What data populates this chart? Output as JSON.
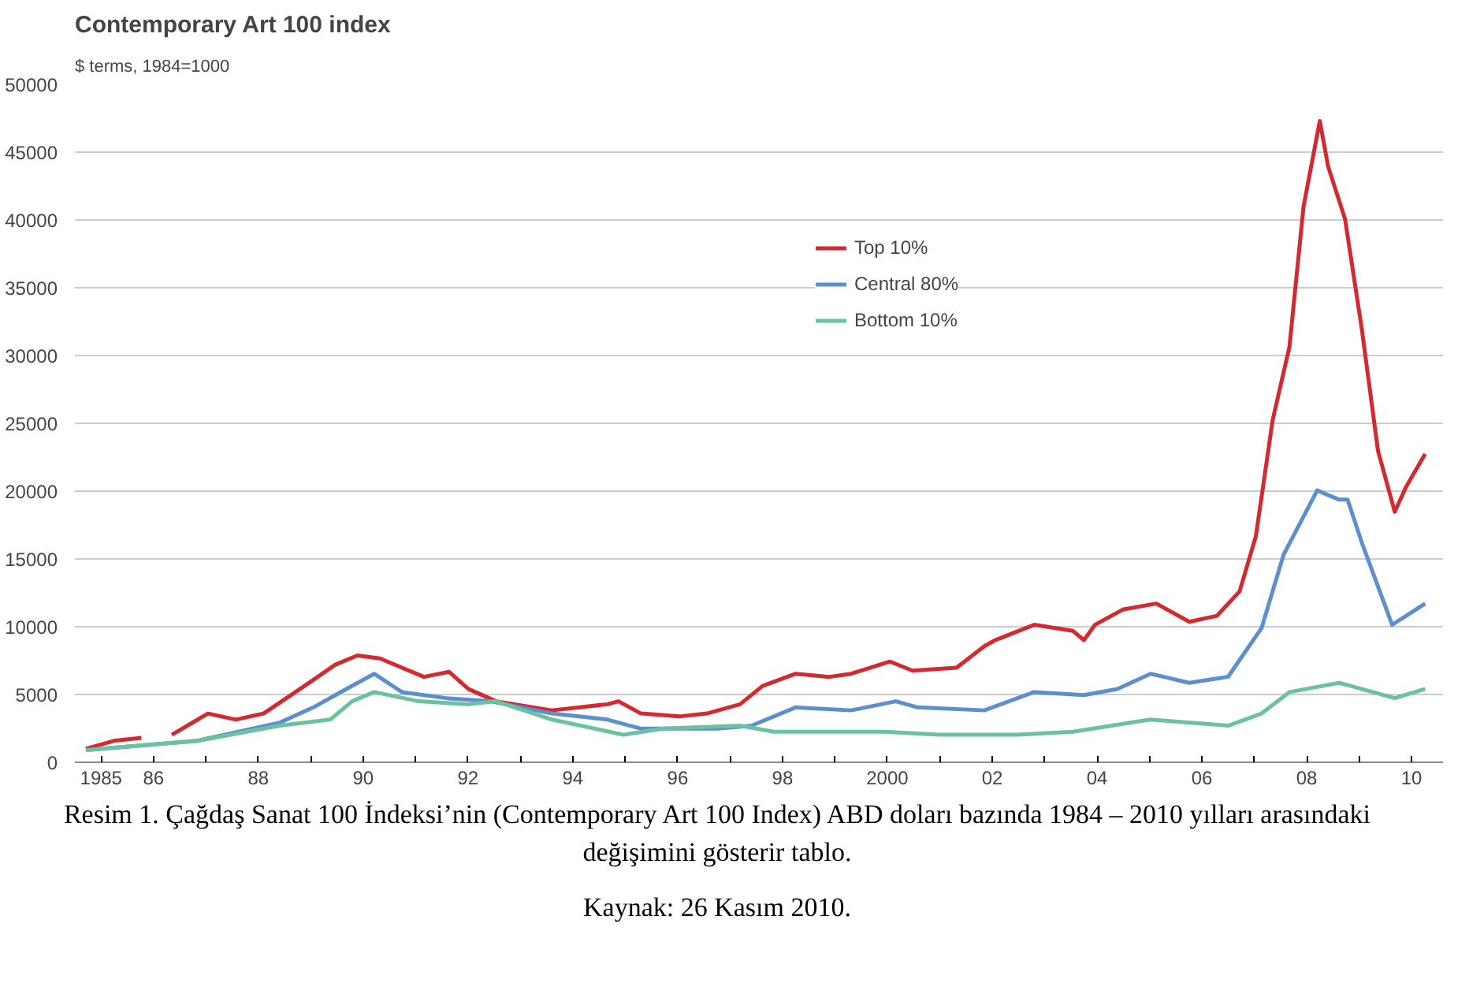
{
  "chart_data": {
    "type": "line",
    "title": "Contemporary Art 100 index",
    "subtitle": "$ terms, 1984=1000",
    "annotations": [
      "Resim 1. Çağdaş Sanat 100 İndeksi’nin (Contemporary Art 100 Index) ABD doları bazında 1984 – 2010 yılları arasındaki değişimini gösterir tablo.",
      "Kaynak: 26 Kasım 2010."
    ],
    "xlim": [
      1984.5,
      2010.6
    ],
    "ylim": [
      0,
      50000
    ],
    "xticks": [
      {
        "value": 1985,
        "label": "1985"
      },
      {
        "value": 1986,
        "label": "86"
      },
      {
        "value": 1987,
        "label": null
      },
      {
        "value": 1988,
        "label": "88"
      },
      {
        "value": 1989,
        "label": null
      },
      {
        "value": 1990,
        "label": "90"
      },
      {
        "value": 1991,
        "label": null
      },
      {
        "value": 1992,
        "label": "92"
      },
      {
        "value": 1993,
        "label": null
      },
      {
        "value": 1994,
        "label": "94"
      },
      {
        "value": 1995,
        "label": null
      },
      {
        "value": 1996,
        "label": "96"
      },
      {
        "value": 1997,
        "label": null
      },
      {
        "value": 1998,
        "label": "98"
      },
      {
        "value": 1999,
        "label": null
      },
      {
        "value": 2000,
        "label": "2000"
      },
      {
        "value": 2001,
        "label": null
      },
      {
        "value": 2002,
        "label": "02"
      },
      {
        "value": 2003,
        "label": null
      },
      {
        "value": 2004,
        "label": "04"
      },
      {
        "value": 2005,
        "label": null
      },
      {
        "value": 2006,
        "label": "06"
      },
      {
        "value": 2007,
        "label": null
      },
      {
        "value": 2008,
        "label": "08"
      },
      {
        "value": 2009,
        "label": null
      },
      {
        "value": 2010,
        "label": "10"
      }
    ],
    "yticks": [
      0,
      5000,
      10000,
      15000,
      20000,
      25000,
      30000,
      35000,
      40000,
      45000,
      50000
    ],
    "grid": "y",
    "legend": "top right",
    "marker": "none",
    "line_style": "solid",
    "series": [
      {
        "name": "Top 10%",
        "color": "#d42a2f",
        "x": [
          1984.71,
          1985.24,
          1985.77,
          1986.0,
          1986.35,
          1987.04,
          1987.57,
          1988.1,
          1988.62,
          1989.05,
          1989.47,
          1989.89,
          1990.32,
          1990.74,
          1991.16,
          1991.64,
          1992.01,
          1992.54,
          1993.6,
          1994.66,
          1994.87,
          1995.3,
          1996.03,
          1996.56,
          1997.19,
          1997.62,
          1998.25,
          1998.89,
          1999.31,
          2000.05,
          2000.48,
          2001.32,
          2001.85,
          2002.06,
          2002.8,
          2003.54,
          2003.75,
          2003.96,
          2004.49,
          2005.13,
          2005.76,
          2006.29,
          2006.72,
          2007.03,
          2007.35,
          2007.67,
          2007.94,
          2008.25,
          2008.41,
          2008.73,
          2009.05,
          2009.36,
          2009.68,
          2009.89,
          2010.26
        ],
        "values": [
          990,
          1580,
          1800,
          null,
          2030,
          3600,
          3150,
          3600,
          4950,
          6080,
          7200,
          7880,
          7660,
          6980,
          6300,
          6670,
          5400,
          4500,
          3830,
          4280,
          4500,
          3600,
          3380,
          3600,
          4280,
          5630,
          6530,
          6300,
          6530,
          7430,
          6760,
          6980,
          8560,
          9010,
          10140,
          9690,
          9010,
          10140,
          11260,
          11710,
          10360,
          10810,
          12610,
          16670,
          25230,
          30630,
          41000,
          47300,
          43920,
          40090,
          31990,
          22970,
          18470,
          20270,
          22750
        ]
      },
      {
        "name": "Central 80%",
        "color": "#5b8fd0",
        "x": [
          1984.71,
          1986.83,
          1988.41,
          1989.05,
          1989.68,
          1990.21,
          1990.74,
          1991.59,
          1992.43,
          1993.6,
          1994.66,
          1995.3,
          1996.77,
          1997.41,
          1998.25,
          1999.31,
          2000.16,
          2000.58,
          2001.85,
          2002.8,
          2003.75,
          2004.39,
          2005.02,
          2005.76,
          2006.5,
          2007.14,
          2007.56,
          2008.2,
          2008.62,
          2008.78,
          2009.05,
          2009.63,
          2010.26
        ],
        "values": [
          900,
          1580,
          2930,
          4050,
          5410,
          6530,
          5180,
          4730,
          4500,
          3600,
          3150,
          2480,
          2480,
          2700,
          4050,
          3830,
          4500,
          4050,
          3830,
          5180,
          4960,
          5410,
          6530,
          5860,
          6310,
          9910,
          15320,
          20050,
          19370,
          19370,
          16220,
          10140,
          11710
        ]
      },
      {
        "name": "Bottom 10%",
        "color": "#6cc1a0",
        "x": [
          1984.71,
          1986.83,
          1988.41,
          1989.37,
          1989.79,
          1990.21,
          1991.06,
          1992.01,
          1992.54,
          1993.6,
          1994.97,
          1995.72,
          1997.19,
          1997.83,
          1998.89,
          1999.94,
          2001.0,
          2001.85,
          2002.48,
          2003.54,
          2005.02,
          2006.5,
          2007.14,
          2007.67,
          2008.62,
          2009.68,
          2010.26
        ],
        "values": [
          900,
          1580,
          2700,
          3150,
          4500,
          5180,
          4500,
          4280,
          4500,
          3150,
          2030,
          2480,
          2700,
          2250,
          2250,
          2250,
          2030,
          2030,
          2030,
          2250,
          3150,
          2700,
          3600,
          5180,
          5860,
          4730,
          5410
        ]
      }
    ]
  }
}
